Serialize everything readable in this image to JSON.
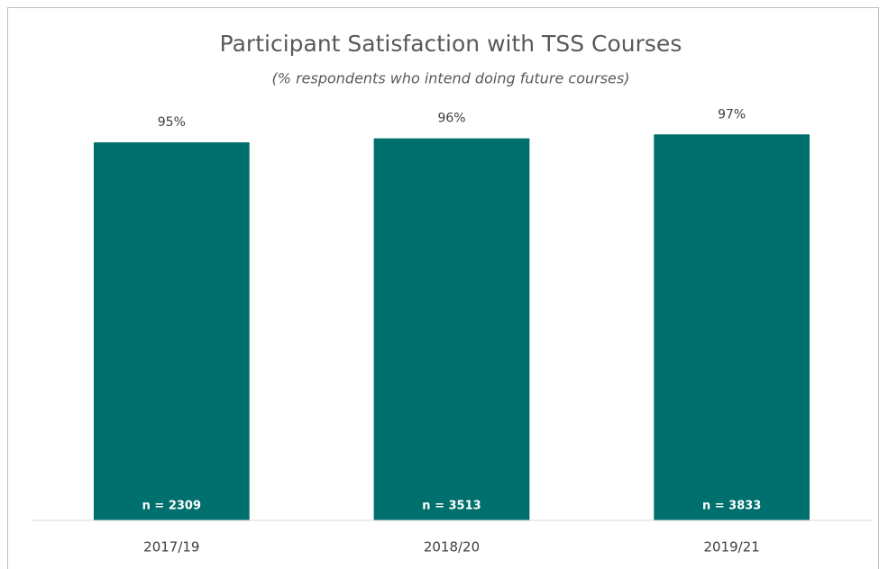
{
  "chart_data": {
    "type": "bar",
    "title": "Participant Satisfaction with TSS Courses",
    "subtitle": "(% respondents who intend doing future courses)",
    "categories": [
      "2017/19",
      "2018/20",
      "2019/21"
    ],
    "values": [
      95,
      96,
      97
    ],
    "value_labels": [
      "95%",
      "96%",
      "97%"
    ],
    "annotations": [
      "n = 2309",
      "n = 3513",
      "n = 3833"
    ],
    "color": "#00706e",
    "ylim": [
      0,
      100
    ]
  }
}
